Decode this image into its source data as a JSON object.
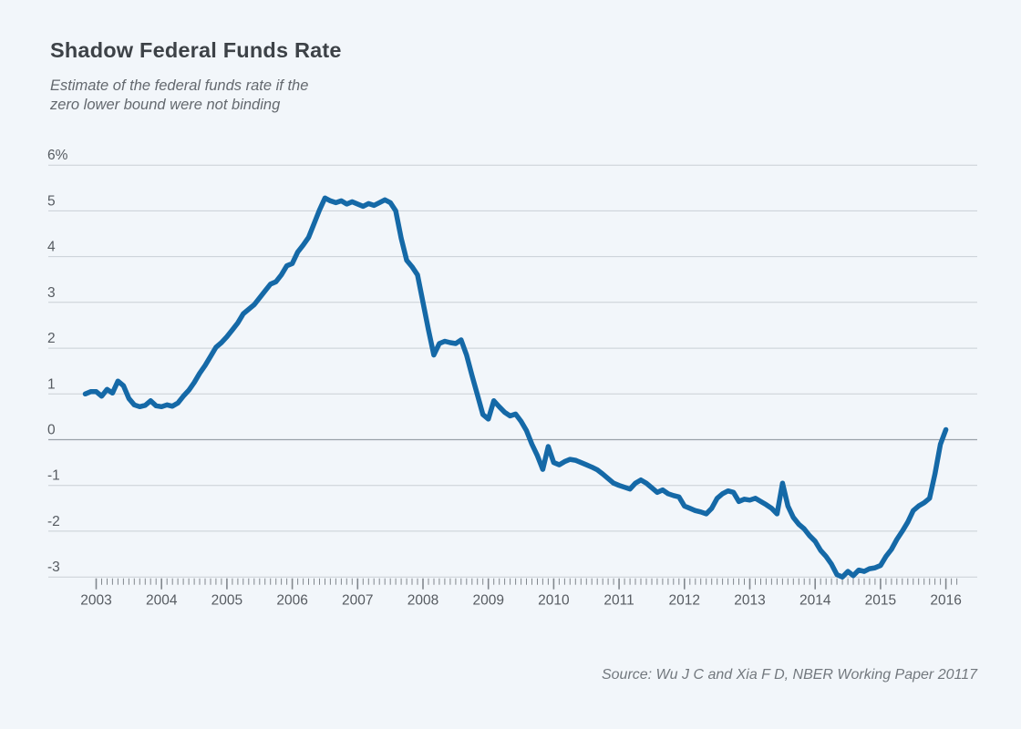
{
  "page": {
    "background_color": "#f2f6fa"
  },
  "header": {
    "title": "Shadow Federal Funds Rate",
    "subtitle": "Estimate of the federal funds rate if the\nzero lower bound were not binding"
  },
  "footer": {
    "source": "Source: Wu J C and Xia F D, NBER Working Paper 20117"
  },
  "chart_data": {
    "type": "line",
    "title": "Shadow Federal Funds Rate",
    "subtitle": "Estimate of the federal funds rate if the zero lower bound were not binding",
    "source": "Source: Wu J C and Xia F D, NBER Working Paper 20117",
    "grid": true,
    "legend": "none",
    "line_color": "#1569a7",
    "ylim": [
      -3,
      6
    ],
    "x_range": [
      2002.83,
      2016.17
    ],
    "y_ticks": [
      {
        "value": 6,
        "label": "6%"
      },
      {
        "value": 5,
        "label": "5"
      },
      {
        "value": 4,
        "label": "4"
      },
      {
        "value": 3,
        "label": "3"
      },
      {
        "value": 2,
        "label": "2"
      },
      {
        "value": 1,
        "label": "1"
      },
      {
        "value": 0,
        "label": "0"
      },
      {
        "value": -1,
        "label": "-1"
      },
      {
        "value": -2,
        "label": "-2"
      },
      {
        "value": -3,
        "label": "-3"
      }
    ],
    "x_ticks": [
      2003,
      2004,
      2005,
      2006,
      2007,
      2008,
      2009,
      2010,
      2011,
      2012,
      2013,
      2014,
      2015,
      2016
    ],
    "series": [
      {
        "name": "Shadow federal funds rate (%)",
        "frequency": "monthly",
        "start_year": 2002,
        "start_month": 11,
        "values": [
          1.0,
          1.05,
          1.05,
          0.95,
          1.1,
          1.02,
          1.28,
          1.18,
          0.9,
          0.76,
          0.72,
          0.75,
          0.85,
          0.74,
          0.72,
          0.76,
          0.73,
          0.8,
          0.95,
          1.08,
          1.25,
          1.45,
          1.62,
          1.82,
          2.02,
          2.12,
          2.25,
          2.4,
          2.55,
          2.75,
          2.85,
          2.95,
          3.1,
          3.25,
          3.4,
          3.45,
          3.6,
          3.8,
          3.85,
          4.1,
          4.25,
          4.42,
          4.72,
          5.02,
          5.28,
          5.22,
          5.18,
          5.22,
          5.15,
          5.2,
          5.15,
          5.1,
          5.16,
          5.12,
          5.18,
          5.24,
          5.18,
          5.0,
          4.4,
          3.92,
          3.78,
          3.6,
          3.0,
          2.4,
          1.85,
          2.1,
          2.15,
          2.12,
          2.1,
          2.18,
          1.85,
          1.4,
          0.98,
          0.55,
          0.45,
          0.85,
          0.72,
          0.6,
          0.52,
          0.56,
          0.4,
          0.2,
          -0.1,
          -0.35,
          -0.65,
          -0.15,
          -0.5,
          -0.55,
          -0.48,
          -0.43,
          -0.45,
          -0.5,
          -0.55,
          -0.6,
          -0.66,
          -0.75,
          -0.85,
          -0.95,
          -1.0,
          -1.04,
          -1.08,
          -0.95,
          -0.88,
          -0.95,
          -1.05,
          -1.15,
          -1.1,
          -1.18,
          -1.22,
          -1.25,
          -1.45,
          -1.5,
          -1.55,
          -1.58,
          -1.62,
          -1.5,
          -1.28,
          -1.18,
          -1.12,
          -1.15,
          -1.35,
          -1.3,
          -1.32,
          -1.28,
          -1.35,
          -1.42,
          -1.5,
          -1.62,
          -0.95,
          -1.45,
          -1.7,
          -1.85,
          -1.95,
          -2.1,
          -2.22,
          -2.42,
          -2.55,
          -2.72,
          -2.95,
          -3.0,
          -2.88,
          -2.97,
          -2.85,
          -2.88,
          -2.82,
          -2.8,
          -2.75,
          -2.55,
          -2.4,
          -2.18,
          -2.0,
          -1.8,
          -1.55,
          -1.45,
          -1.38,
          -1.28,
          -0.75,
          -0.1,
          0.22
        ]
      }
    ]
  }
}
